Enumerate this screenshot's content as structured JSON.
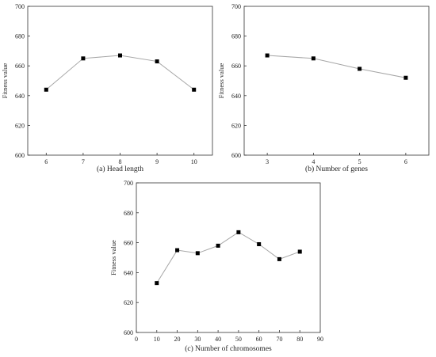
{
  "chart_data": [
    {
      "type": "line",
      "marker": "square",
      "caption": "(a) Head length",
      "xlabel": "",
      "ylabel": "Fitness value",
      "xlim": [
        5.5,
        10.5
      ],
      "ylim": [
        600,
        700
      ],
      "xticks": [
        6,
        7,
        8,
        9,
        10
      ],
      "yticks": [
        600,
        620,
        640,
        660,
        680,
        700
      ],
      "x": [
        6,
        7,
        8,
        9,
        10
      ],
      "y": [
        644,
        665,
        667,
        663,
        644
      ],
      "grid": false,
      "legend": "none"
    },
    {
      "type": "line",
      "marker": "square",
      "caption": "(b) Number of genes",
      "xlabel": "",
      "ylabel": "Fitness value",
      "xlim": [
        2.5,
        6.5
      ],
      "ylim": [
        600,
        700
      ],
      "xticks": [
        3,
        4,
        5,
        6
      ],
      "yticks": [
        600,
        620,
        640,
        660,
        680,
        700
      ],
      "x": [
        3,
        4,
        5,
        6
      ],
      "y": [
        667,
        665,
        658,
        652
      ],
      "grid": false,
      "legend": "none"
    },
    {
      "type": "line",
      "marker": "square",
      "caption": "(c) Number of chromosomes",
      "xlabel": "",
      "ylabel": "Fitness value",
      "xlim": [
        0,
        90
      ],
      "ylim": [
        600,
        700
      ],
      "xticks": [
        0,
        10,
        20,
        30,
        40,
        50,
        60,
        70,
        80,
        90
      ],
      "yticks": [
        600,
        620,
        640,
        660,
        680,
        700
      ],
      "x": [
        10,
        20,
        30,
        40,
        50,
        60,
        70,
        80
      ],
      "y": [
        633,
        655,
        653,
        658,
        667,
        659,
        649,
        654
      ],
      "grid": false,
      "legend": "none"
    }
  ],
  "colors": {
    "line": "#a6a6a6",
    "marker": "#000000",
    "axis": "#333333"
  }
}
